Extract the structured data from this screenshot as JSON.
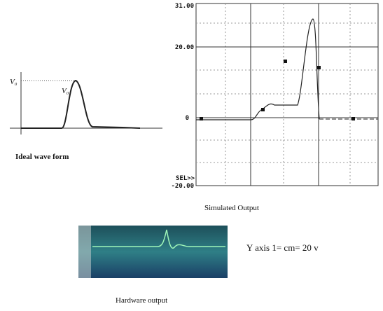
{
  "ideal": {
    "labels": [
      "V₀",
      "V₀"
    ],
    "caption": "Ideal wave form"
  },
  "simulated": {
    "axis_labels": [
      "31.00",
      "20.00",
      "0",
      "-20.00",
      "SEL>>"
    ],
    "caption": "Simulated Output"
  },
  "hardware": {
    "note": "Y axis 1= cm= 20 v",
    "caption": "Hardware output"
  }
}
